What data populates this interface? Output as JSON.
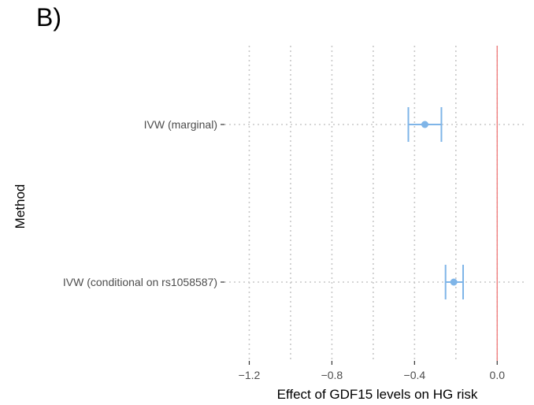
{
  "panel_label": "B)",
  "chart_data": {
    "type": "forest",
    "title": "",
    "xlabel": "Effect of GDF15 levels on HG risk",
    "ylabel": "Method",
    "xlim": [
      -1.32,
      0.14
    ],
    "x_ticks": [
      -1.2,
      -0.8,
      -0.4,
      0.0
    ],
    "x_tick_labels": [
      "−1.2",
      "−0.8",
      "−0.4",
      "0.0"
    ],
    "reference_line": 0.0,
    "grid": "dotted",
    "colors": {
      "estimate": "#7fb5e8",
      "reference": "#f08080",
      "grid": "#c8c8c8"
    },
    "series": [
      {
        "label": "IVW (marginal)",
        "estimate": -0.35,
        "lower": -0.43,
        "upper": -0.27
      },
      {
        "label": "IVW (conditional on rs1058587)",
        "estimate": -0.21,
        "lower": -0.25,
        "upper": -0.165
      }
    ]
  }
}
